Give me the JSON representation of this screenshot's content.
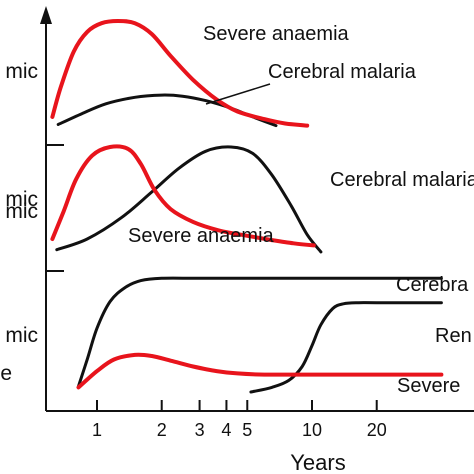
{
  "chart_data": {
    "type": "line",
    "x_scale": "log",
    "xlabel": "Years",
    "xticks": [
      {
        "value": 1,
        "label": "1"
      },
      {
        "value": 2,
        "label": "2"
      },
      {
        "value": 3,
        "label": "3"
      },
      {
        "value": 4,
        "label": "4"
      },
      {
        "value": 5,
        "label": "5"
      },
      {
        "value": 10,
        "label": "10"
      },
      {
        "value": 20,
        "label": "20"
      }
    ],
    "colors": {
      "severe_anaemia": "#e8141c",
      "other": "#111111"
    },
    "left_labels_clipped": [
      "mic",
      "mic",
      "mic",
      "mic",
      "e"
    ],
    "panels": [
      {
        "series": [
          {
            "name": "Severe anaemia",
            "color": "#e8141c",
            "x": [
              0.62,
              0.68,
              0.78,
              0.9,
              1.05,
              1.25,
              1.5,
              1.8,
              2.2,
              2.8,
              3.6,
              4.5,
              6,
              7.5,
              9.5
            ],
            "y": [
              0.12,
              0.4,
              0.72,
              0.9,
              0.98,
              1.0,
              0.98,
              0.88,
              0.68,
              0.46,
              0.28,
              0.17,
              0.1,
              0.06,
              0.04
            ]
          },
          {
            "name": "Cerebral malaria",
            "color": "#111111",
            "x": [
              0.66,
              0.85,
              1.1,
              1.5,
              2.0,
              2.5,
              3.2,
              4.2,
              5.3,
              6.8
            ],
            "y": [
              0.05,
              0.15,
              0.24,
              0.3,
              0.32,
              0.31,
              0.27,
              0.2,
              0.12,
              0.04
            ]
          }
        ],
        "labels": [
          "Severe anaemia",
          "Cerebral malaria"
        ]
      },
      {
        "series": [
          {
            "name": "Severe anaemia",
            "color": "#e8141c",
            "x": [
              0.62,
              0.7,
              0.8,
              0.95,
              1.15,
              1.4,
              1.6,
              1.85,
              2.2,
              2.8,
              3.7,
              5,
              6.5,
              8.2,
              10.2
            ],
            "y": [
              0.14,
              0.4,
              0.7,
              0.92,
              1.0,
              0.98,
              0.84,
              0.6,
              0.42,
              0.3,
              0.22,
              0.17,
              0.13,
              0.1,
              0.08
            ]
          },
          {
            "name": "Cerebral malaria",
            "color": "#111111",
            "x": [
              0.65,
              0.9,
              1.3,
              1.8,
              2.4,
              3.2,
              4.2,
              5.3,
              6.5,
              8,
              9.5,
              11
            ],
            "y": [
              0.04,
              0.14,
              0.34,
              0.58,
              0.8,
              0.96,
              1.0,
              0.94,
              0.74,
              0.45,
              0.18,
              0.02
            ]
          }
        ],
        "labels": [
          "Cerebral malaria",
          "Severe anaemia"
        ]
      },
      {
        "series": [
          {
            "name": "Cerebral malaria",
            "color": "#111111",
            "x": [
              0.82,
              0.9,
              1.0,
              1.15,
              1.35,
              1.6,
              2,
              3,
              6,
              10,
              20,
              40
            ],
            "y": [
              0.05,
              0.28,
              0.55,
              0.78,
              0.9,
              0.96,
              0.98,
              0.98,
              0.98,
              0.98,
              0.98,
              0.98
            ]
          },
          {
            "name": "Renal",
            "color": "#111111",
            "x": [
              5.2,
              6.5,
              7.8,
              9,
              10,
              11,
              12.5,
              14,
              16.5,
              20,
              40
            ],
            "y": [
              0.0,
              0.04,
              0.1,
              0.22,
              0.4,
              0.58,
              0.72,
              0.76,
              0.77,
              0.77,
              0.77
            ]
          },
          {
            "name": "Severe anaemia",
            "color": "#e8141c",
            "x": [
              0.82,
              1.0,
              1.2,
              1.5,
              1.8,
              2.2,
              2.8,
              3.6,
              4.5,
              6,
              10,
              20,
              40
            ],
            "y": [
              0.04,
              0.18,
              0.28,
              0.32,
              0.31,
              0.27,
              0.22,
              0.18,
              0.16,
              0.15,
              0.15,
              0.15,
              0.15
            ]
          }
        ],
        "labels": [
          "Cerebra",
          "Ren",
          "Severe"
        ]
      }
    ]
  }
}
